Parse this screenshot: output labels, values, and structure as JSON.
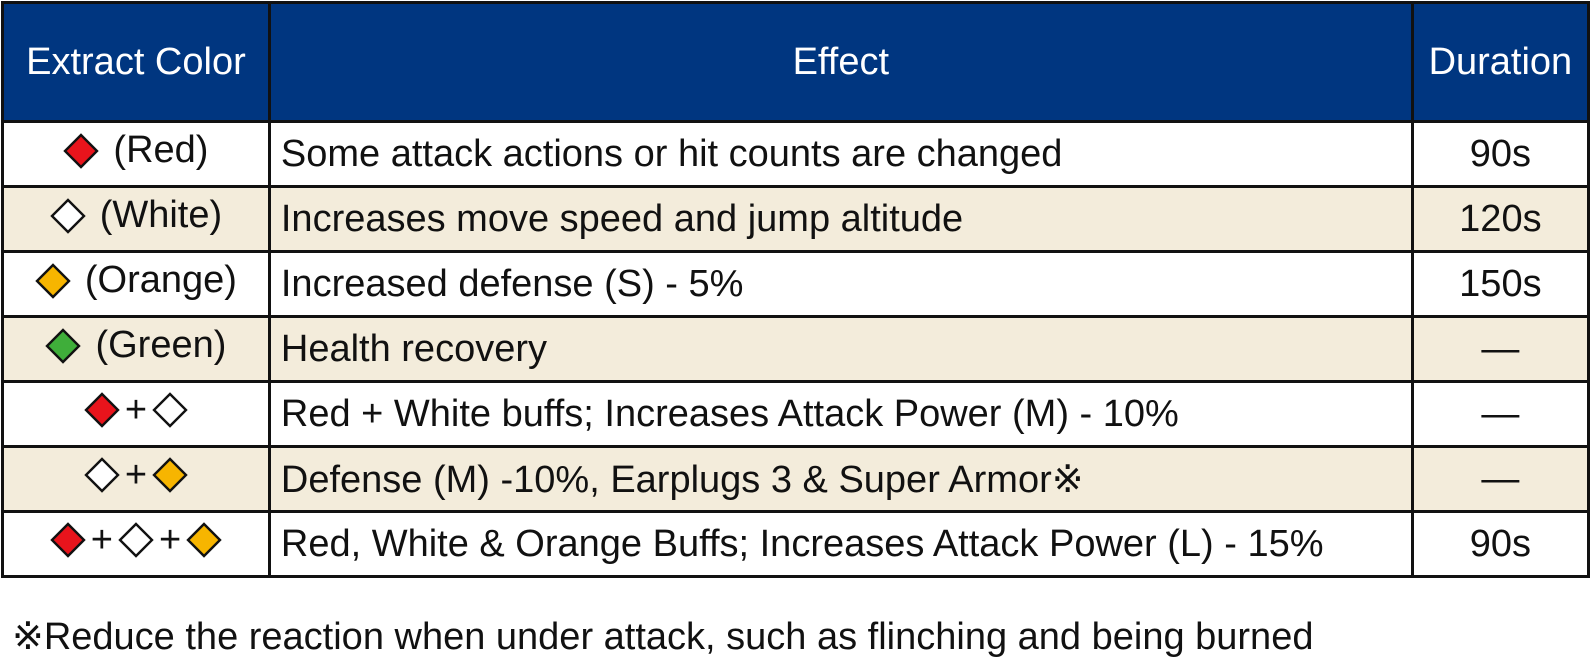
{
  "table": {
    "headers": {
      "color": "Extract Color",
      "effect": "Effect",
      "duration": "Duration"
    },
    "rows": [
      {
        "colors": [
          "red"
        ],
        "color_label": "(Red)",
        "effect": "Some attack actions or hit counts are changed",
        "duration": "90s"
      },
      {
        "colors": [
          "white"
        ],
        "color_label": "(White)",
        "effect": "Increases move speed and jump altitude",
        "duration": "120s"
      },
      {
        "colors": [
          "orange"
        ],
        "color_label": "(Orange)",
        "effect": "Increased defense (S) - 5%",
        "duration": "150s"
      },
      {
        "colors": [
          "green"
        ],
        "color_label": "(Green)",
        "effect": "Health recovery",
        "duration": "—"
      },
      {
        "colors": [
          "red",
          "white"
        ],
        "color_label": "",
        "effect": "Red + White buffs; Increases Attack Power (M) - 10%",
        "duration": "—"
      },
      {
        "colors": [
          "white",
          "orange"
        ],
        "color_label": "",
        "effect": "Defense (M) -10%, Earplugs 3 & Super Armor※",
        "duration": "—"
      },
      {
        "colors": [
          "red",
          "white",
          "orange"
        ],
        "color_label": "",
        "effect": "Red, White & Orange Buffs; Increases Attack Power (L) - 15%",
        "duration": "90s"
      }
    ]
  },
  "footnote": "※Reduce the reaction when under attack, such as flinching and being burned",
  "colors": {
    "header_bg": "#003680",
    "row_alt_bg": "#f3ecdb",
    "red": "#e8141c",
    "white": "#ffffff",
    "orange": "#f7b500",
    "green": "#3fae3a"
  },
  "combo_joiner": "+"
}
